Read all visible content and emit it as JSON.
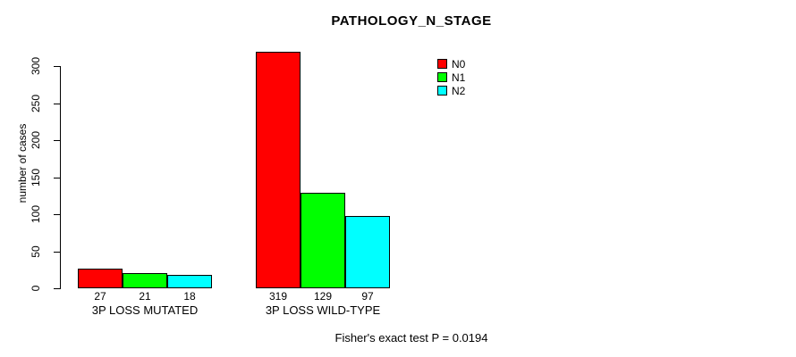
{
  "chart_data": {
    "type": "bar",
    "title": "PATHOLOGY_N_STAGE",
    "xlabel": "",
    "ylabel": "number of cases",
    "categories": [
      "3P LOSS MUTATED",
      "3P LOSS WILD-TYPE"
    ],
    "series": [
      {
        "name": "N0",
        "color": "#ff0000",
        "values": [
          27,
          319
        ]
      },
      {
        "name": "N1",
        "color": "#00ff00",
        "values": [
          21,
          129
        ]
      },
      {
        "name": "N2",
        "color": "#00ffff",
        "values": [
          18,
          97
        ]
      }
    ],
    "value_labels": [
      [
        27,
        21,
        18
      ],
      [
        319,
        129,
        97
      ]
    ],
    "ylim": [
      0,
      300
    ],
    "yticks": [
      0,
      50,
      100,
      150,
      200,
      250,
      300
    ],
    "grid": false,
    "legend_position": "top-right",
    "legend_items": [
      {
        "label": "N0",
        "color": "#ff0000"
      },
      {
        "label": "N1",
        "color": "#00ff00"
      },
      {
        "label": "N2",
        "color": "#00ffff"
      }
    ],
    "annotation": "Fisher's exact test P = 0.0194"
  },
  "colors": {
    "background": "#ffffff",
    "axis": "#000000",
    "text": "#000000"
  }
}
